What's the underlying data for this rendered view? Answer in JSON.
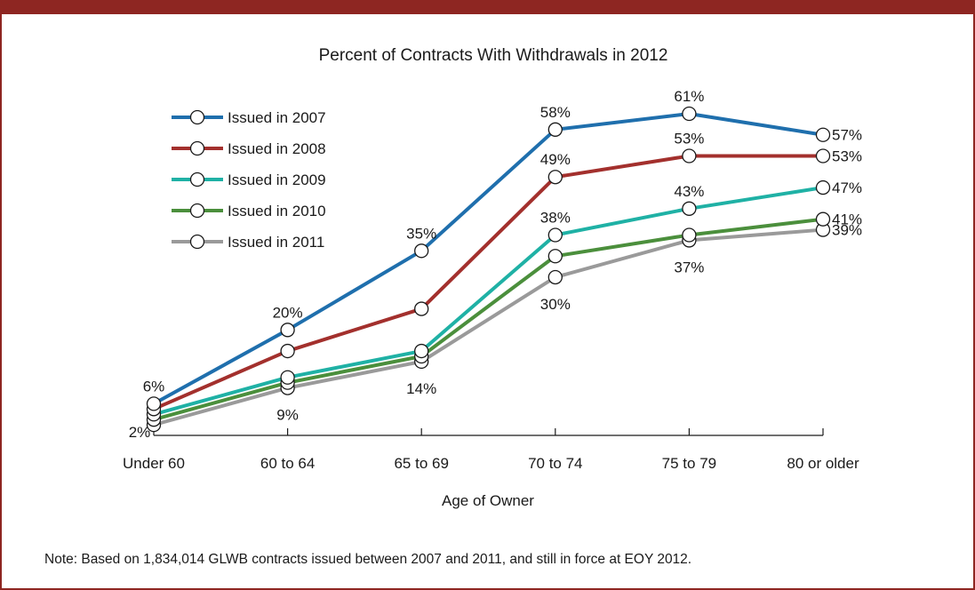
{
  "note": "Note: Based on 1,834,014 GLWB contracts issued between 2007 and 2011, and still in force at EOY 2012.",
  "chart_data": {
    "type": "line",
    "title": "Percent of Contracts With Withdrawals in 2012",
    "xlabel": "Age of Owner",
    "ylabel": "",
    "categories": [
      "Under 60",
      "60 to 64",
      "65 to 69",
      "70 to 74",
      "75 to 79",
      "80 or older"
    ],
    "ylim": [
      0,
      70
    ],
    "grid": false,
    "legend_position": "top-left",
    "series": [
      {
        "name": "Issued in 2007",
        "color": "#1f6fad",
        "values": [
          6,
          20,
          35,
          58,
          61,
          57
        ]
      },
      {
        "name": "Issued in 2008",
        "color": "#a3302d",
        "values": [
          5,
          16,
          24,
          49,
          53,
          53
        ]
      },
      {
        "name": "Issued in 2009",
        "color": "#1fb1a5",
        "values": [
          4,
          11,
          16,
          38,
          43,
          47
        ]
      },
      {
        "name": "Issued in 2010",
        "color": "#4b8f3c",
        "values": [
          3,
          10,
          15,
          34,
          38,
          41
        ]
      },
      {
        "name": "Issued in 2011",
        "color": "#9a9a9a",
        "values": [
          2,
          9,
          14,
          30,
          37,
          39
        ]
      }
    ],
    "data_labels": [
      {
        "series": 0,
        "index": 0,
        "text": "6%"
      },
      {
        "series": 4,
        "index": 0,
        "text": "2%"
      },
      {
        "series": 0,
        "index": 1,
        "text": "20%"
      },
      {
        "series": 4,
        "index": 1,
        "text": "9%"
      },
      {
        "series": 0,
        "index": 2,
        "text": "35%"
      },
      {
        "series": 4,
        "index": 2,
        "text": "14%"
      },
      {
        "series": 0,
        "index": 3,
        "text": "58%"
      },
      {
        "series": 1,
        "index": 3,
        "text": "49%"
      },
      {
        "series": 2,
        "index": 3,
        "text": "38%"
      },
      {
        "series": 4,
        "index": 3,
        "text": "30%"
      },
      {
        "series": 0,
        "index": 4,
        "text": "61%"
      },
      {
        "series": 1,
        "index": 4,
        "text": "53%"
      },
      {
        "series": 2,
        "index": 4,
        "text": "43%"
      },
      {
        "series": 4,
        "index": 4,
        "text": "37%"
      },
      {
        "series": 0,
        "index": 5,
        "text": "57%"
      },
      {
        "series": 1,
        "index": 5,
        "text": "53%"
      },
      {
        "series": 2,
        "index": 5,
        "text": "47%"
      },
      {
        "series": 3,
        "index": 5,
        "text": "41%"
      },
      {
        "series": 4,
        "index": 5,
        "text": "39%"
      }
    ]
  }
}
